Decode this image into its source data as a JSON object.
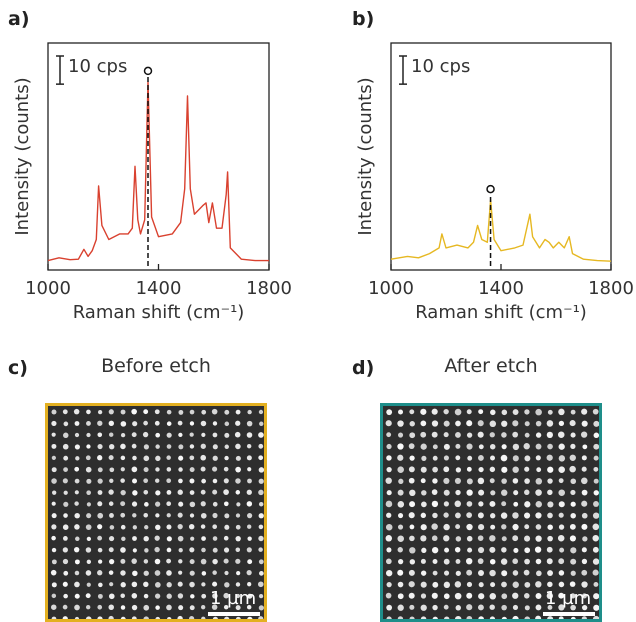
{
  "panel_labels": {
    "a": "a)",
    "b": "b)",
    "c": "c)",
    "d": "d)"
  },
  "colors": {
    "spectrum_a": "#d9412f",
    "spectrum_b": "#e6b822",
    "sem_c_border": "#e3b021",
    "sem_d_border": "#1e8e8a"
  },
  "sem": {
    "c_title": "Before etch",
    "d_title": "After etch",
    "scalebar_label": "1 µm"
  },
  "chart_data": [
    {
      "panel": "a)",
      "type": "line",
      "xlabel": "Raman shift (cm⁻¹)",
      "ylabel": "Intensity (counts)",
      "xlim": [
        1000,
        1800
      ],
      "xticks": [
        1000,
        1400,
        1800
      ],
      "scale_bar_label": "10 cps",
      "marker_x": 1362,
      "series": [
        {
          "x": [
            1000,
            1040,
            1080,
            1110,
            1130,
            1145,
            1160,
            1175,
            1183,
            1195,
            1220,
            1260,
            1290,
            1305,
            1315,
            1325,
            1335,
            1350,
            1362,
            1375,
            1400,
            1450,
            1480,
            1495,
            1505,
            1515,
            1530,
            1560,
            1572,
            1582,
            1595,
            1610,
            1630,
            1645,
            1650,
            1660,
            1700,
            1750,
            1800
          ],
          "y": [
            0.5,
            1.5,
            0.8,
            1.0,
            4.5,
            2.0,
            4.0,
            8.0,
            27.0,
            13.0,
            8.0,
            10.0,
            10.0,
            12.0,
            34.0,
            15.0,
            10.0,
            15.0,
            64.0,
            16.0,
            9.0,
            10.0,
            14.0,
            26.0,
            59.0,
            26.0,
            17.0,
            20.0,
            21.0,
            14.0,
            21.0,
            12.0,
            12.0,
            24.0,
            32.0,
            5.0,
            1.0,
            0.5,
            0.5
          ]
        }
      ]
    },
    {
      "panel": "b)",
      "type": "line",
      "xlabel": "Raman shift (cm⁻¹)",
      "ylabel": "Intensity (counts)",
      "xlim": [
        1000,
        1800
      ],
      "xticks": [
        1000,
        1400,
        1800
      ],
      "scale_bar_label": "10 cps",
      "marker_x": 1362,
      "series": [
        {
          "x": [
            1000,
            1060,
            1100,
            1140,
            1175,
            1185,
            1200,
            1240,
            1280,
            1300,
            1315,
            1330,
            1350,
            1362,
            1375,
            1400,
            1450,
            1480,
            1505,
            1515,
            1540,
            1560,
            1575,
            1590,
            1610,
            1630,
            1648,
            1660,
            1700,
            1750,
            1800
          ],
          "y": [
            1.0,
            2.0,
            1.5,
            3.0,
            5.0,
            10.0,
            5.0,
            6.0,
            5.0,
            7.0,
            13.0,
            8.0,
            7.0,
            22.0,
            8.0,
            4.0,
            5.0,
            6.0,
            17.0,
            9.0,
            5.0,
            8.0,
            7.0,
            5.0,
            7.0,
            5.0,
            9.0,
            3.0,
            1.0,
            0.5,
            0.3
          ]
        }
      ]
    }
  ]
}
